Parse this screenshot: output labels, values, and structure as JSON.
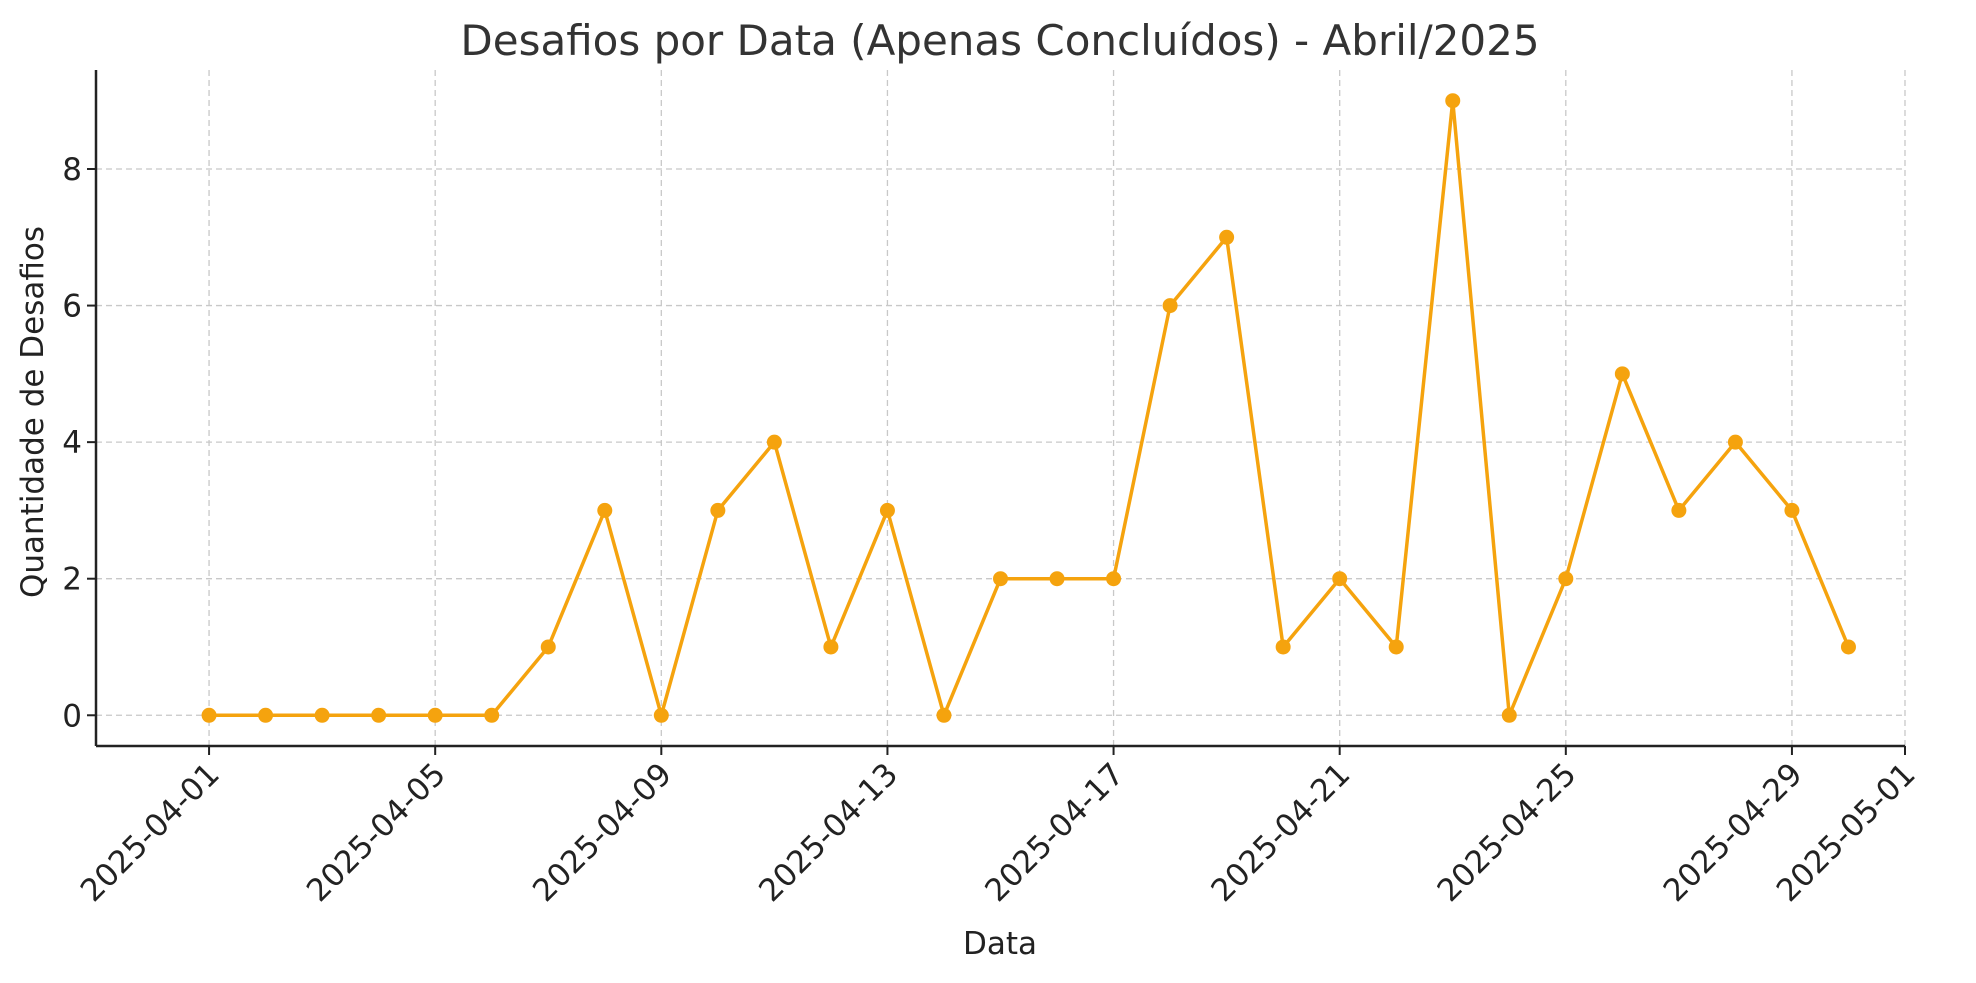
{
  "chart_data": {
    "type": "line",
    "title": "Desafios por Data (Apenas Concluídos) - Abril/2025",
    "xlabel": "Data",
    "ylabel": "Quantidade de Desafios",
    "x_ticks": [
      "2025-04-01",
      "2025-04-05",
      "2025-04-09",
      "2025-04-13",
      "2025-04-17",
      "2025-04-21",
      "2025-04-25",
      "2025-04-29",
      "2025-05-01"
    ],
    "y_ticks": [
      0,
      2,
      4,
      6,
      8
    ],
    "xlim": [
      "2025-03-30",
      "2025-05-01"
    ],
    "ylim": [
      -0.45,
      9.45
    ],
    "grid": true,
    "line_color": "#f5a30e",
    "series": [
      {
        "x": [
          "2025-04-01",
          "2025-04-02",
          "2025-04-03",
          "2025-04-04",
          "2025-04-05",
          "2025-04-06",
          "2025-04-07",
          "2025-04-08",
          "2025-04-09",
          "2025-04-10",
          "2025-04-11",
          "2025-04-12",
          "2025-04-13",
          "2025-04-14",
          "2025-04-15",
          "2025-04-16",
          "2025-04-17",
          "2025-04-18",
          "2025-04-19",
          "2025-04-20",
          "2025-04-21",
          "2025-04-22",
          "2025-04-23",
          "2025-04-24",
          "2025-04-25",
          "2025-04-26",
          "2025-04-27",
          "2025-04-28",
          "2025-04-29",
          "2025-04-30"
        ],
        "values": [
          0,
          0,
          0,
          0,
          0,
          0,
          1,
          3,
          0,
          3,
          4,
          1,
          3,
          0,
          2,
          2,
          2,
          6,
          7,
          1,
          2,
          1,
          9,
          0,
          2,
          5,
          3,
          4,
          3,
          1
        ]
      }
    ]
  }
}
